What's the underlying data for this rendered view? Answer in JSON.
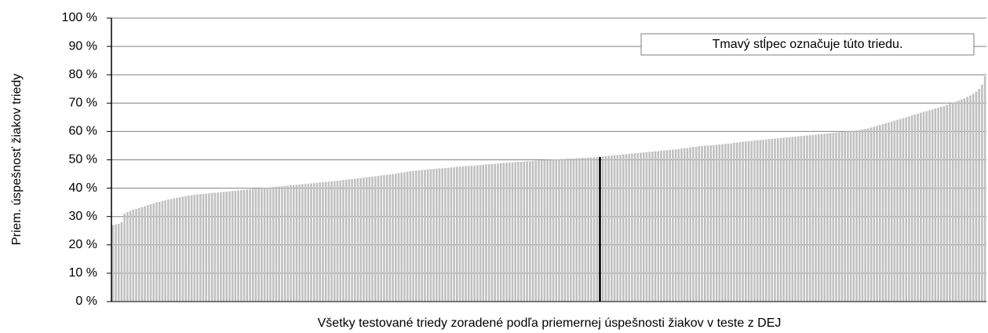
{
  "chart_data": {
    "type": "bar",
    "ylabel": "Priem. úspešnosť žiakov triedy",
    "xlabel": "Všetky testované triedy zoradené podľa priemernej úspešnosti žiakov v teste z DEJ",
    "annotation": "Tmavý stĺpec označuje túto triedu.",
    "color": "#c0c0c0",
    "highlight_index": 167,
    "highlight_color": "#000000",
    "ylim": [
      0,
      100
    ],
    "yticks": [
      {
        "value": 0,
        "label": "0 %"
      },
      {
        "value": 10,
        "label": "10 %"
      },
      {
        "value": 20,
        "label": "20 %"
      },
      {
        "value": 30,
        "label": "30 %"
      },
      {
        "value": 40,
        "label": "40 %"
      },
      {
        "value": 50,
        "label": "50 %"
      },
      {
        "value": 60,
        "label": "60 %"
      },
      {
        "value": 70,
        "label": "70 %"
      },
      {
        "value": 80,
        "label": "80 %"
      },
      {
        "value": 90,
        "label": "90 %"
      },
      {
        "value": 100,
        "label": "100 %"
      }
    ],
    "grid": true,
    "values": [
      27,
      27.2,
      27.4,
      28,
      31,
      31.6,
      32,
      32.4,
      32.7,
      33,
      33.3,
      33.6,
      34,
      34.3,
      34.6,
      35,
      35.2,
      35.5,
      35.7,
      36,
      36.2,
      36.4,
      36.6,
      36.8,
      37,
      37.2,
      37.4,
      37.5,
      37.7,
      37.8,
      37.9,
      38,
      38.1,
      38.2,
      38.3,
      38.4,
      38.5,
      38.6,
      38.7,
      38.8,
      38.9,
      39,
      39.1,
      39.2,
      39.3,
      39.4,
      39.5,
      39.6,
      39.7,
      39.8,
      39.9,
      40,
      40.1,
      40.2,
      40.3,
      40.4,
      40.5,
      40.6,
      40.7,
      40.8,
      40.9,
      41,
      41.1,
      41.2,
      41.3,
      41.4,
      41.5,
      41.6,
      41.7,
      41.8,
      41.9,
      42,
      42.1,
      42.2,
      42.3,
      42.4,
      42.5,
      42.6,
      42.7,
      42.9,
      43,
      43.1,
      43.2,
      43.3,
      43.5,
      43.6,
      43.7,
      43.8,
      44,
      44.1,
      44.2,
      44.3,
      44.5,
      44.6,
      44.7,
      44.8,
      45,
      45.1,
      45.3,
      45.5,
      45.6,
      45.8,
      46,
      46.1,
      46.2,
      46.3,
      46.4,
      46.5,
      46.6,
      46.7,
      46.8,
      46.9,
      47,
      47,
      47.1,
      47.2,
      47.3,
      47.4,
      47.5,
      47.6,
      47.7,
      47.8,
      47.9,
      48,
      48,
      48.1,
      48.2,
      48.3,
      48.4,
      48.5,
      48.5,
      48.6,
      48.7,
      48.8,
      48.9,
      49,
      49,
      49.1,
      49.2,
      49.3,
      49.3,
      49.4,
      49.5,
      49.5,
      49.6,
      49.7,
      49.8,
      49.8,
      49.9,
      50,
      50,
      50.1,
      50.1,
      50.2,
      50.3,
      50.3,
      50.4,
      50.5,
      50.5,
      50.6,
      50.6,
      50.7,
      50.7,
      50.8,
      50.8,
      50.9,
      50.9,
      51,
      51.2,
      51.3,
      51.4,
      51.5,
      51.6,
      51.7,
      51.8,
      51.9,
      52,
      52.1,
      52.2,
      52.3,
      52.4,
      52.5,
      52.6,
      52.7,
      52.8,
      52.9,
      53,
      53.1,
      53.2,
      53.3,
      53.4,
      53.5,
      53.6,
      53.7,
      53.8,
      54,
      54.1,
      54.2,
      54.4,
      54.5,
      54.6,
      54.8,
      54.9,
      55,
      55,
      55.1,
      55.2,
      55.3,
      55.4,
      55.5,
      55.6,
      55.7,
      55.8,
      56,
      56.1,
      56.2,
      56.4,
      56.5,
      56.6,
      56.7,
      56.8,
      56.9,
      57,
      57.1,
      57.2,
      57.3,
      57.4,
      57.5,
      57.6,
      57.7,
      57.8,
      57.9,
      58,
      58.1,
      58.2,
      58.3,
      58.4,
      58.5,
      58.6,
      58.7,
      58.8,
      58.9,
      59,
      59.1,
      59.2,
      59.3,
      59.4,
      59.5,
      59.6,
      59.7,
      59.8,
      59.9,
      60,
      60.1,
      60.2,
      60.4,
      60.5,
      60.7,
      60.9,
      61.1,
      61.4,
      61.7,
      62,
      62.3,
      62.6,
      62.9,
      63.2,
      63.5,
      63.8,
      64.1,
      64.4,
      64.7,
      65,
      65.3,
      65.7,
      66,
      66.3,
      66.6,
      66.9,
      67.2,
      67.5,
      67.8,
      68.1,
      68.4,
      68.7,
      69,
      69.4,
      69.8,
      70.2,
      70.5,
      70.9,
      71.3,
      71.7,
      72.2,
      72.7,
      73.3,
      74,
      75,
      76.5,
      79.5
    ]
  }
}
